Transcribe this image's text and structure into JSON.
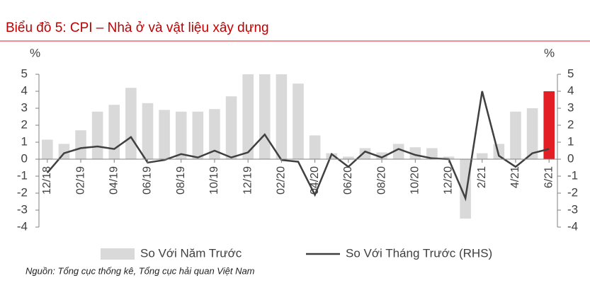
{
  "chart_data": {
    "type": "bar_line",
    "title": "Biểu đồ 5: CPI – Nhà ở và vật liệu xây dựng",
    "ylabel": "%",
    "y2label": "%",
    "source": "Nguồn: Tổng cục thống kê, Tổng cục hải quan Việt Nam",
    "categories": [
      "12/18",
      null,
      "02/19",
      null,
      "04/19",
      null,
      "06/19",
      null,
      "08/19",
      null,
      "10/19",
      null,
      "12/19",
      null,
      "02/20",
      null,
      "04/20",
      null,
      "06/20",
      null,
      "08/20",
      null,
      "10/20",
      null,
      "12/20",
      null,
      "2/21",
      null,
      "4/21",
      null,
      "6/21"
    ],
    "series": [
      {
        "name": "So Với Năm Trước",
        "kind": "bar",
        "axis": "y",
        "color": "#d9d9d9",
        "colors": [
          "#d9d9d9",
          "#d9d9d9",
          "#d9d9d9",
          "#d9d9d9",
          "#d9d9d9",
          "#d9d9d9",
          "#d9d9d9",
          "#d9d9d9",
          "#d9d9d9",
          "#d9d9d9",
          "#d9d9d9",
          "#d9d9d9",
          "#d9d9d9",
          "#d9d9d9",
          "#d9d9d9",
          "#d9d9d9",
          "#d9d9d9",
          "#d9d9d9",
          "#d9d9d9",
          "#d9d9d9",
          "#d9d9d9",
          "#d9d9d9",
          "#d9d9d9",
          "#d9d9d9",
          "#d9d9d9",
          "#d9d9d9",
          "#d9d9d9",
          "#d9d9d9",
          "#d9d9d9",
          "#d9d9d9",
          "#e31e24"
        ],
        "values": [
          1.15,
          0.9,
          1.7,
          2.8,
          3.2,
          4.2,
          3.3,
          2.9,
          2.8,
          2.8,
          2.95,
          3.7,
          5.0,
          5.0,
          5.0,
          4.45,
          1.4,
          0.35,
          0.15,
          0.65,
          0.4,
          0.9,
          0.7,
          0.65,
          0.15,
          -3.5,
          0.35,
          0.9,
          2.8,
          3.0,
          4.0
        ]
      },
      {
        "name": "So Với Tháng Trước (RHS)",
        "kind": "line",
        "axis": "y2",
        "color": "#404040",
        "values": [
          -0.8,
          0.35,
          0.65,
          0.75,
          0.6,
          1.3,
          -0.2,
          -0.05,
          0.3,
          0.1,
          0.5,
          0.1,
          0.4,
          1.45,
          -0.05,
          -0.15,
          -2.1,
          0.3,
          -0.45,
          0.45,
          0.1,
          0.6,
          0.25,
          0.05,
          0.0,
          -2.3,
          4.0,
          0.2,
          -0.45,
          0.35,
          0.6
        ]
      }
    ],
    "ylim": [
      -4,
      5
    ],
    "yticks": [
      -4,
      -3,
      -2,
      -1,
      0,
      1,
      2,
      3,
      4,
      5
    ],
    "y2lim": [
      -4,
      5
    ],
    "y2ticks": [
      -4,
      -3,
      -2,
      -1,
      0,
      1,
      2,
      3,
      4,
      5
    ]
  }
}
